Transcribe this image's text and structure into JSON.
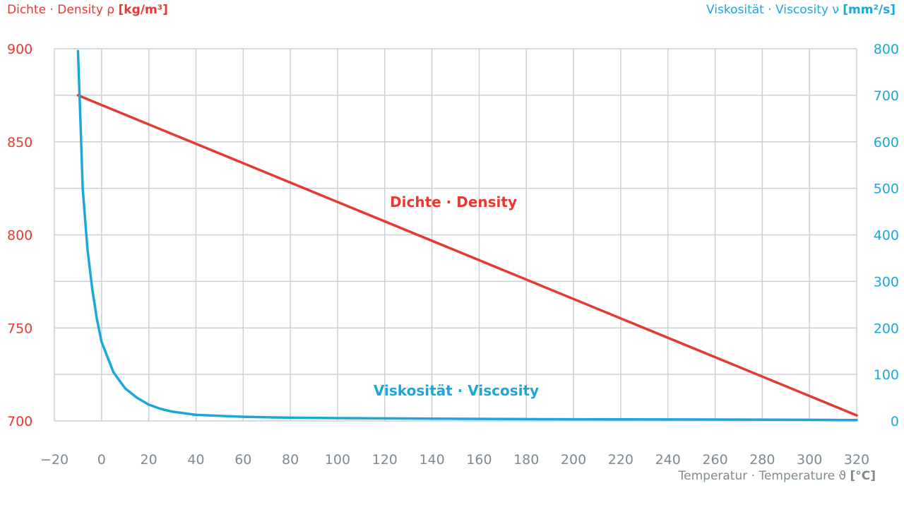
{
  "titles": {
    "left_plain": "Dichte · Density ρ ",
    "left_unit": "[kg/m³]",
    "right_plain": "Viskosität · Viscosity ν ",
    "right_unit": "[mm²/s]",
    "x_plain": "Temperatur · Temperature ϑ ",
    "x_unit": "[°C]"
  },
  "colors": {
    "density": "#e53a32",
    "viscosity": "#1ba7dc",
    "grid": "#c9d0d5",
    "axis_text": "#7d8a92"
  },
  "chart_data": {
    "type": "line",
    "grid": true,
    "x": {
      "range": [
        -20,
        320
      ],
      "ticks": [
        -20,
        0,
        20,
        40,
        60,
        80,
        100,
        120,
        140,
        160,
        180,
        200,
        220,
        240,
        260,
        280,
        300,
        320
      ],
      "label": "Temperatur · Temperature ϑ [°C]"
    },
    "y_left": {
      "range": [
        700,
        900
      ],
      "ticks": [
        700,
        750,
        800,
        850,
        900
      ],
      "label": "Dichte · Density ρ [kg/m³]"
    },
    "y_right": {
      "range": [
        0,
        800
      ],
      "ticks": [
        0,
        100,
        200,
        300,
        400,
        500,
        600,
        700,
        800
      ],
      "label": "Viskosität · Viscosity ν [mm²/s]"
    },
    "series": [
      {
        "name": "Dichte · Density",
        "axis": "left",
        "color": "#e53a32",
        "points": [
          [
            -10,
            875
          ],
          [
            320,
            703
          ]
        ]
      },
      {
        "name": "Viskosität · Viscosity",
        "axis": "right",
        "color": "#1ba7dc",
        "points": [
          [
            -10,
            795
          ],
          [
            -9,
            650
          ],
          [
            -8,
            500
          ],
          [
            -6,
            370
          ],
          [
            -4,
            285
          ],
          [
            -2,
            220
          ],
          [
            0,
            170
          ],
          [
            5,
            105
          ],
          [
            10,
            70
          ],
          [
            15,
            50
          ],
          [
            20,
            35
          ],
          [
            25,
            26
          ],
          [
            30,
            20
          ],
          [
            40,
            13
          ],
          [
            50,
            11
          ],
          [
            60,
            9
          ],
          [
            80,
            7
          ],
          [
            100,
            6
          ],
          [
            140,
            5
          ],
          [
            180,
            4
          ],
          [
            220,
            3.5
          ],
          [
            260,
            3
          ],
          [
            300,
            2.5
          ],
          [
            320,
            2
          ]
        ]
      }
    ]
  }
}
